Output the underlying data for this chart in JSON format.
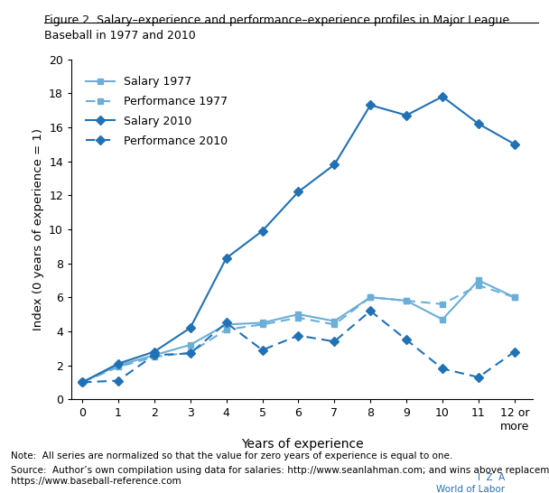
{
  "title": "Figure 2. Salary–experience and performance–experience profiles in Major League\nBaseball in 1977 and 2010",
  "xlabel": "Years of experience",
  "ylabel": "Index (0 years of experience = 1)",
  "xlim": [
    -0.3,
    12.5
  ],
  "ylim": [
    0,
    20
  ],
  "yticks": [
    0,
    2,
    4,
    6,
    8,
    10,
    12,
    14,
    16,
    18,
    20
  ],
  "xtick_labels": [
    "0",
    "1",
    "2",
    "3",
    "4",
    "5",
    "6",
    "7",
    "8",
    "9",
    "10",
    "11",
    "12 or\nmore"
  ],
  "salary_1977": [
    1.0,
    2.0,
    2.6,
    3.2,
    4.4,
    4.5,
    5.0,
    4.6,
    6.0,
    5.8,
    4.7,
    7.0,
    6.0
  ],
  "performance_1977": [
    1.0,
    1.9,
    2.5,
    2.75,
    4.1,
    4.4,
    4.8,
    4.4,
    6.0,
    5.8,
    5.6,
    6.7,
    6.0
  ],
  "salary_2010": [
    1.0,
    2.1,
    2.8,
    4.2,
    8.3,
    9.9,
    12.2,
    13.8,
    17.3,
    16.7,
    17.8,
    16.2,
    15.0
  ],
  "performance_2010": [
    1.0,
    1.1,
    2.6,
    2.7,
    4.5,
    2.9,
    3.75,
    3.4,
    5.2,
    3.5,
    1.8,
    1.3,
    2.8
  ],
  "color_light": "#6baed6",
  "color_dark": "#2171b5",
  "note_text": "Note:  All series are normalized so that the value for zero years of experience is equal to one.",
  "source_text": "Source:  Author’s own compilation using data for salaries: http://www.seanlahman.com; and wins above replacement:\nhttps://www.baseball-reference.com",
  "iza_text": "I  Z  A\nWorld of Labor",
  "background_color": "#ffffff"
}
